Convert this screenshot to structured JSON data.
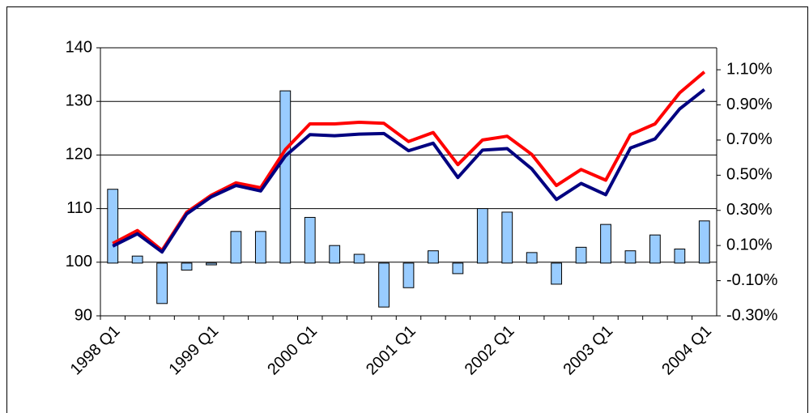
{
  "chart_data": {
    "type": "combo",
    "categories": [
      "1998 Q1",
      null,
      null,
      null,
      "1999 Q1",
      null,
      null,
      null,
      "2000 Q1",
      null,
      null,
      null,
      "2001 Q1",
      null,
      null,
      null,
      "2002 Q1",
      null,
      null,
      null,
      "2003 Q1",
      null,
      null,
      null,
      "2004 Q1"
    ],
    "series": [
      {
        "type": "bar",
        "axis": "y2",
        "color": "#99ccff",
        "values": [
          0.42,
          0.04,
          -0.23,
          -0.04,
          -0.01,
          0.18,
          0.18,
          0.98,
          0.26,
          0.1,
          0.05,
          -0.25,
          -0.14,
          0.07,
          -0.06,
          0.31,
          0.29,
          0.06,
          -0.12,
          0.09,
          0.22,
          0.07,
          0.16,
          0.08,
          0.24
        ]
      },
      {
        "type": "line",
        "color": "#ff0000",
        "values": [
          103.5,
          105.9,
          102.2,
          109.3,
          112.5,
          114.8,
          113.9,
          121.0,
          125.8,
          125.8,
          126.1,
          125.9,
          122.5,
          124.2,
          118.2,
          122.8,
          123.5,
          120.1,
          114.3,
          117.3,
          115.3,
          123.8,
          125.8,
          131.6,
          135.5
        ]
      },
      {
        "type": "line",
        "color": "#000080",
        "values": [
          103.0,
          105.3,
          101.9,
          109.0,
          112.2,
          114.3,
          113.3,
          119.8,
          123.8,
          123.6,
          123.9,
          124.0,
          120.8,
          122.2,
          115.8,
          120.9,
          121.2,
          117.4,
          111.7,
          114.7,
          112.6,
          121.3,
          123.0,
          128.6,
          132.2
        ]
      }
    ],
    "ylim": [
      90,
      140
    ],
    "yticks": [
      90,
      100,
      110,
      120,
      130,
      140
    ],
    "y2lim": [
      -0.3,
      1.225
    ],
    "y2ticks": [
      {
        "value": -0.3,
        "label": "-0.30%"
      },
      {
        "value": -0.1,
        "label": "-0.10%"
      },
      {
        "value": 0.1,
        "label": "0.10%"
      },
      {
        "value": 0.3,
        "label": "0.30%"
      },
      {
        "value": 0.5,
        "label": "0.50%"
      },
      {
        "value": 0.7,
        "label": "0.70%"
      },
      {
        "value": 0.9,
        "label": "0.90%"
      },
      {
        "value": 1.1,
        "label": "1.10%"
      }
    ],
    "grid": true
  }
}
